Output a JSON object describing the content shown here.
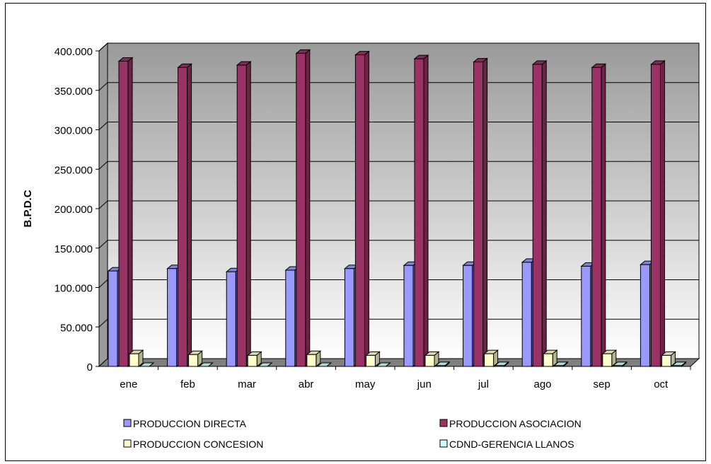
{
  "chart_data": {
    "type": "bar",
    "ylabel": "B.P.D.C",
    "categories": [
      "ene",
      "feb",
      "mar",
      "abr",
      "may",
      "jun",
      "jul",
      "ago",
      "sep",
      "oct"
    ],
    "ylim": [
      0,
      400000
    ],
    "yticks": [
      0,
      50000,
      100000,
      150000,
      200000,
      250000,
      300000,
      350000,
      400000
    ],
    "ytick_labels": [
      "0",
      "50.000",
      "100.000",
      "150.000",
      "200.000",
      "250.000",
      "300.000",
      "350.000",
      "400.000"
    ],
    "grid": true,
    "legend_position": "bottom",
    "series": [
      {
        "name": "PRODUCCION DIRECTA",
        "color": "#9999ff",
        "values": [
          121000,
          124000,
          120000,
          122000,
          124000,
          128000,
          128000,
          132000,
          127000,
          129000
        ]
      },
      {
        "name": "PRODUCCION ASOCIACION",
        "color": "#993366",
        "values": [
          387000,
          379000,
          382000,
          397000,
          395000,
          390000,
          386000,
          383000,
          379000,
          383000
        ]
      },
      {
        "name": "PRODUCCION CONCESION",
        "color": "#ffffcc",
        "values": [
          16000,
          15000,
          14000,
          15000,
          14000,
          14000,
          16000,
          16000,
          16000,
          14000
        ]
      },
      {
        "name": "CDND-GERENCIA LLANOS",
        "color": "#ccffff",
        "values": [
          0,
          0,
          0,
          0,
          0,
          1000,
          1000,
          1000,
          1000,
          1000
        ]
      }
    ]
  }
}
